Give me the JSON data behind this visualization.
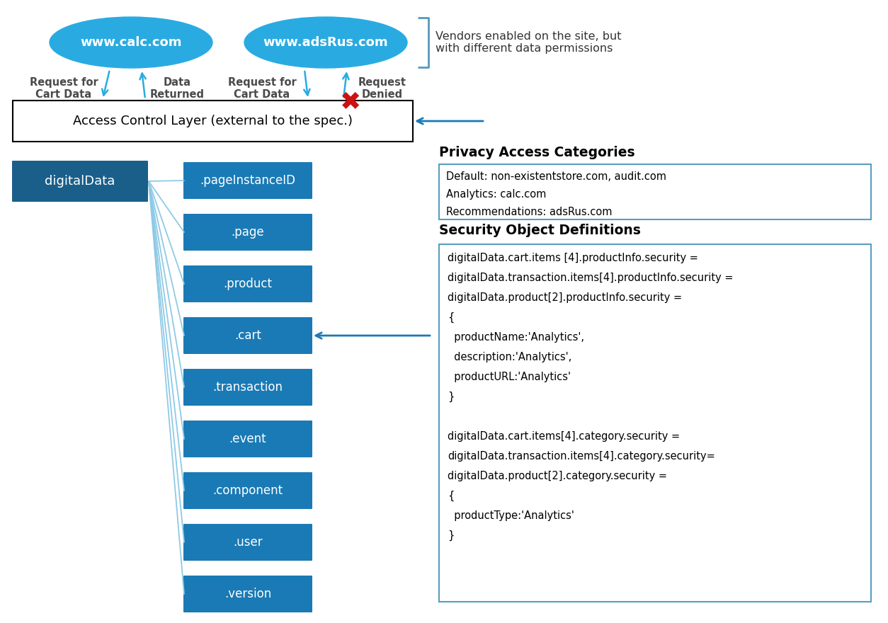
{
  "bg_color": "#ffffff",
  "ellipse_color": "#29abe2",
  "dark_blue_box": "#1a5f8a",
  "medium_blue_box": "#1a7ab5",
  "arrow_color": "#29abe2",
  "arrow_label_color": "#4a4a4a",
  "acl_text": "Access Control Layer (external to the spec.)",
  "ellipse1_text": "www.calc.com",
  "ellipse2_text": "www.adsRus.com",
  "vendor_note": "Vendors enabled on the site, but\nwith different data permissions",
  "privacy_title": "Privacy Access Categories",
  "privacy_box_lines": [
    "Default: non-existentstore.com, audit.com",
    "Analytics: calc.com",
    "Recommendations: adsRus.com"
  ],
  "security_title": "Security Object Definitions",
  "security_box_lines": [
    "digitalData.cart.items [4].productInfo.security =",
    "digitalData.transaction.items[4].productInfo.security =",
    "digitalData.product[2].productInfo.security =",
    "{",
    "  productName:'Analytics',",
    "  description:'Analytics',",
    "  productURL:'Analytics'",
    "}",
    " ",
    "digitalData.cart.items[4].category.security =",
    "digitalData.transaction.items[4].category.security=",
    "digitalData.product[2].category.security =",
    "{",
    "  productType:'Analytics'",
    "}"
  ],
  "digital_data_label": "digitalData",
  "child_labels": [
    ".pageInstanceID",
    ".page",
    ".product",
    ".cart",
    ".transaction",
    ".event",
    ".component",
    ".user",
    ".version"
  ],
  "request_for_cart_data1": "Request for\nCart Data",
  "data_returned": "Data\nReturned",
  "request_for_cart_data2": "Request for\nCart Data",
  "request_denied": "Request\nDenied"
}
